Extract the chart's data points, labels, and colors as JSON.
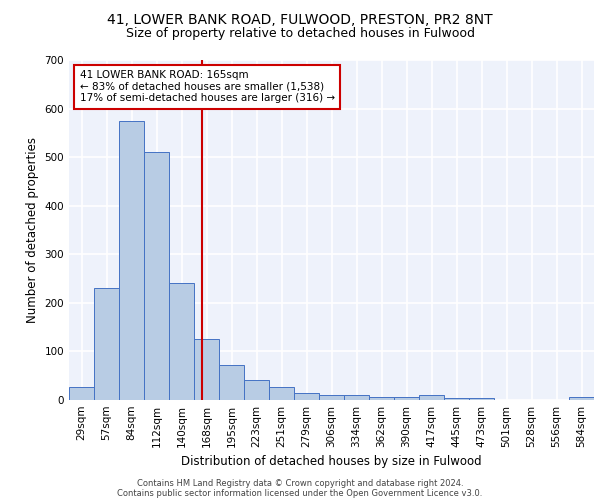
{
  "title_line1": "41, LOWER BANK ROAD, FULWOOD, PRESTON, PR2 8NT",
  "title_line2": "Size of property relative to detached houses in Fulwood",
  "xlabel": "Distribution of detached houses by size in Fulwood",
  "ylabel": "Number of detached properties",
  "footer_line1": "Contains HM Land Registry data © Crown copyright and database right 2024.",
  "footer_line2": "Contains public sector information licensed under the Open Government Licence v3.0.",
  "bin_labels": [
    "29sqm",
    "57sqm",
    "84sqm",
    "112sqm",
    "140sqm",
    "168sqm",
    "195sqm",
    "223sqm",
    "251sqm",
    "279sqm",
    "306sqm",
    "334sqm",
    "362sqm",
    "390sqm",
    "417sqm",
    "445sqm",
    "473sqm",
    "501sqm",
    "528sqm",
    "556sqm",
    "584sqm"
  ],
  "bar_values": [
    27,
    230,
    575,
    510,
    240,
    125,
    72,
    42,
    27,
    15,
    10,
    10,
    6,
    6,
    10,
    5,
    5,
    0,
    0,
    0,
    7
  ],
  "bar_color": "#b8cce4",
  "bar_edge_color": "#4472c4",
  "property_line_x": 4.82,
  "property_line_color": "#cc0000",
  "annotation_text": "41 LOWER BANK ROAD: 165sqm\n← 83% of detached houses are smaller (1,538)\n17% of semi-detached houses are larger (316) →",
  "annotation_box_color": "#cc0000",
  "ylim": [
    0,
    700
  ],
  "yticks": [
    0,
    100,
    200,
    300,
    400,
    500,
    600,
    700
  ],
  "background_color": "#eef2fb",
  "grid_color": "#ffffff",
  "title_fontsize": 10,
  "subtitle_fontsize": 9,
  "axis_label_fontsize": 8.5,
  "tick_fontsize": 7.5,
  "footer_fontsize": 6.0
}
